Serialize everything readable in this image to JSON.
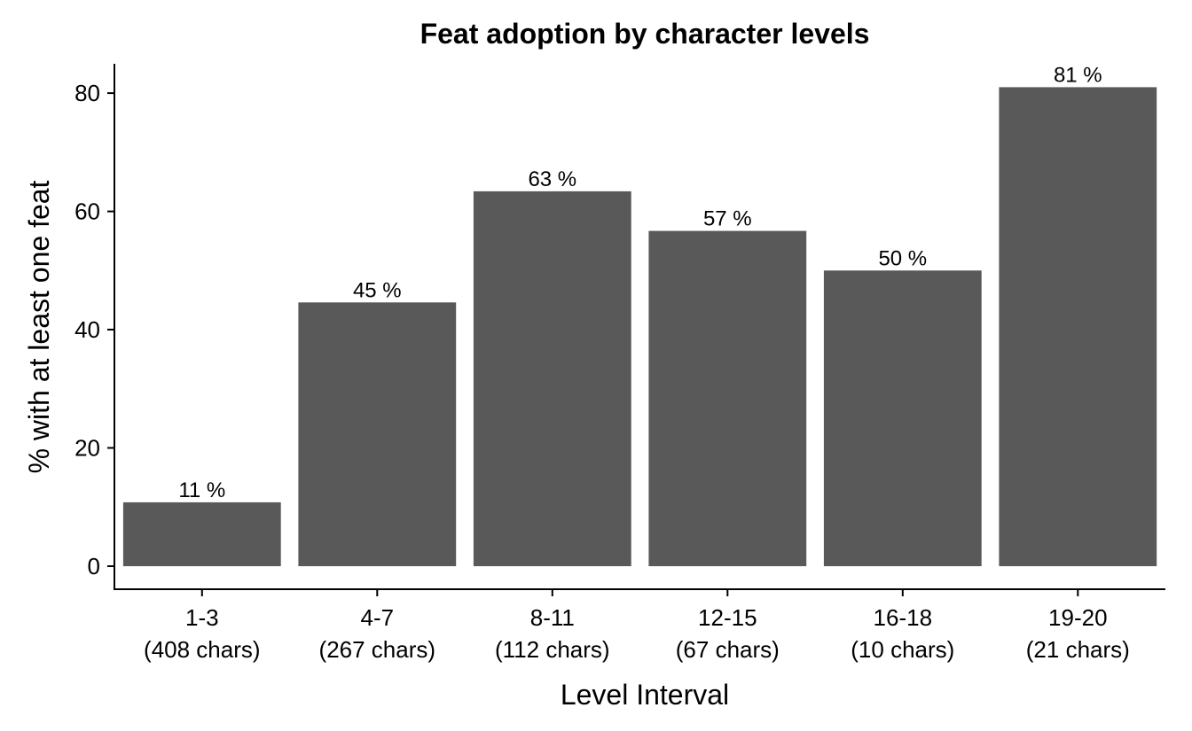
{
  "chart_data": {
    "type": "bar",
    "title": "Feat adoption by character levels",
    "xlabel": "Level Interval",
    "ylabel": "% with at least one feat",
    "categories": [
      "1-3",
      "4-7",
      "8-11",
      "12-15",
      "16-18",
      "19-20"
    ],
    "category_sublabels": [
      "(408 chars)",
      "(267 chars)",
      "(112 chars)",
      "(67 chars)",
      "(10 chars)",
      "(21 chars)"
    ],
    "values": [
      10.8,
      44.6,
      63.4,
      56.7,
      50.0,
      81.0
    ],
    "data_labels": [
      "11 %",
      "45 %",
      "63 %",
      "57 %",
      "50 %",
      "81 %"
    ],
    "y_ticks": [
      0,
      20,
      40,
      60,
      80
    ],
    "ylim": [
      0,
      85
    ],
    "bar_color": "#595959",
    "grid": false,
    "legend": "none"
  }
}
